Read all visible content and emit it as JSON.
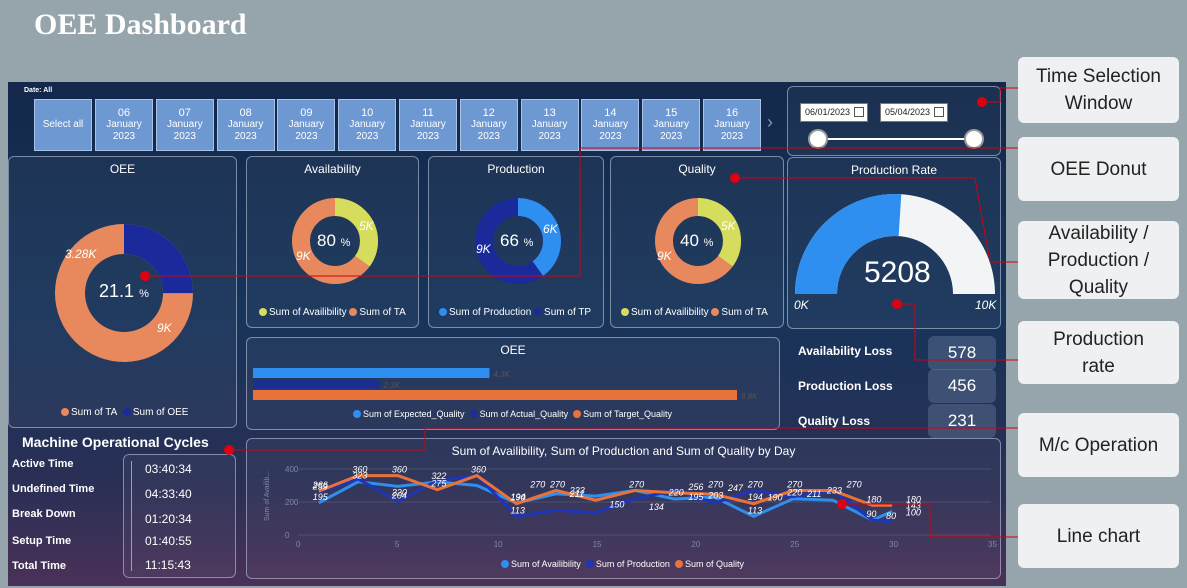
{
  "title": "OEE Dashboard",
  "date_slicer": {
    "label": "Date: All",
    "select_all": "Select all",
    "tiles": [
      {
        "day": "06",
        "month": "January",
        "year": "2023"
      },
      {
        "day": "07",
        "month": "January",
        "year": "2023"
      },
      {
        "day": "08",
        "month": "January",
        "year": "2023"
      },
      {
        "day": "09",
        "month": "January",
        "year": "2023"
      },
      {
        "day": "10",
        "month": "January",
        "year": "2023"
      },
      {
        "day": "11",
        "month": "January",
        "year": "2023"
      },
      {
        "day": "12",
        "month": "January",
        "year": "2023"
      },
      {
        "day": "13",
        "month": "January",
        "year": "2023"
      },
      {
        "day": "14",
        "month": "January",
        "year": "2023"
      },
      {
        "day": "15",
        "month": "January",
        "year": "2023"
      },
      {
        "day": "16",
        "month": "January",
        "year": "2023"
      }
    ],
    "next_arrow": "›"
  },
  "range": {
    "start": "06/01/2023",
    "end": "05/04/2023",
    "slider_start": 0,
    "slider_end": 1
  },
  "oee_donut": {
    "title": "OEE",
    "center_value": "21.1",
    "center_unit": "%",
    "label_oee": "3.28K",
    "label_ta": "9K",
    "legend": [
      "Sum of TA",
      "Sum of OEE"
    ],
    "oee_fraction": 0.25
  },
  "availability": {
    "title": "Availability",
    "center_value": "80",
    "center_unit": "%",
    "label_a": "5K",
    "label_b": "9K",
    "legend": [
      "Sum of Availibility",
      "Sum of TA"
    ],
    "fraction": 0.35
  },
  "production": {
    "title": "Production",
    "center_value": "66",
    "center_unit": "%",
    "label_a": "6K",
    "label_b": "9K",
    "legend": [
      "Sum of Production",
      "Sum of TP"
    ],
    "fraction": 0.4
  },
  "quality": {
    "title": "Quality",
    "center_value": "40",
    "center_unit": "%",
    "label_a": "5K",
    "label_b": "9K",
    "legend": [
      "Sum of Availibility",
      "Sum of TA"
    ],
    "fraction": 0.35
  },
  "production_rate": {
    "title": "Production Rate",
    "value": "5208",
    "min": "0K",
    "max": "10K",
    "fraction": 0.52
  },
  "oee_bar": {
    "title": "OEE",
    "bars": [
      {
        "name": "Sum of Expected_Quality",
        "value": 4300,
        "label": "4.3K",
        "color": "#2e8ff0"
      },
      {
        "name": "Sum of Actual_Quality",
        "value": 2300,
        "label": "2.3K",
        "color": "#1a2f8f"
      },
      {
        "name": "Sum of Target_Quality",
        "value": 8800,
        "label": "8.8K",
        "color": "#e8733a"
      }
    ],
    "max": 8800
  },
  "losses": [
    {
      "label": "Availability Loss",
      "value": "578"
    },
    {
      "label": "Production Loss",
      "value": "456"
    },
    {
      "label": "Quality Loss",
      "value": "231"
    }
  ],
  "machine_cycles": {
    "title": "Machine Operational Cycles",
    "rows": [
      {
        "label": "Active Time",
        "value": "03:40:34"
      },
      {
        "label": "Undefined Time",
        "value": "04:33:40"
      },
      {
        "label": "Break Down",
        "value": "01:20:34"
      },
      {
        "label": "Setup Time",
        "value": "01:40:55"
      },
      {
        "label": "Total Time",
        "value": "11:15:43"
      }
    ]
  },
  "chart_data": {
    "type": "line",
    "title": "Sum of Availibility, Sum of Production and Sum of Quality by Day",
    "ylabel": "Sum of Availib...",
    "xlim": [
      0,
      35
    ],
    "ylim": [
      0,
      400
    ],
    "xticks": [
      0,
      5,
      10,
      15,
      20,
      25,
      30,
      35
    ],
    "yticks": [
      0,
      200,
      400
    ],
    "series": [
      {
        "name": "Sum of Availibility",
        "color": "#2e8ff0",
        "points": [
          [
            1,
            195
          ],
          [
            3,
            323
          ],
          [
            5,
            295
          ],
          [
            7,
            322
          ],
          [
            9,
            300
          ],
          [
            11,
            194
          ],
          [
            13,
            250
          ],
          [
            15,
            236
          ],
          [
            17,
            270
          ],
          [
            19,
            218
          ],
          [
            21,
            230
          ],
          [
            23,
            113
          ],
          [
            25,
            220
          ],
          [
            27,
            211
          ],
          [
            29,
            90
          ],
          [
            30,
            143
          ]
        ]
      },
      {
        "name": "Sum of Production",
        "color": "#1f35b8",
        "points": [
          [
            1,
            259
          ],
          [
            3,
            340
          ],
          [
            5,
            204
          ],
          [
            7,
            330
          ],
          [
            9,
            360
          ],
          [
            11,
            113
          ],
          [
            13,
            150
          ],
          [
            15,
            134
          ],
          [
            17,
            220
          ],
          [
            19,
            270
          ],
          [
            21,
            194
          ],
          [
            23,
            270
          ],
          [
            25,
            233
          ],
          [
            27,
            270
          ],
          [
            29,
            90
          ],
          [
            30,
            80
          ]
        ]
      },
      {
        "name": "Sum of Quality",
        "color": "#e8733a",
        "points": [
          [
            1,
            266
          ],
          [
            3,
            360
          ],
          [
            5,
            360
          ],
          [
            7,
            275
          ],
          [
            9,
            360
          ],
          [
            11,
            190
          ],
          [
            13,
            270
          ],
          [
            15,
            211
          ],
          [
            17,
            270
          ],
          [
            19,
            256
          ],
          [
            21,
            247
          ],
          [
            23,
            190
          ],
          [
            25,
            270
          ],
          [
            27,
            270
          ],
          [
            29,
            180
          ],
          [
            30,
            180
          ]
        ]
      }
    ],
    "data_labels": [
      {
        "x": 1,
        "y": 266,
        "t": "266"
      },
      {
        "x": 1,
        "y": 259,
        "t": "259"
      },
      {
        "x": 1,
        "y": 195,
        "t": "195"
      },
      {
        "x": 3,
        "y": 360,
        "t": "360"
      },
      {
        "x": 3,
        "y": 323,
        "t": "323"
      },
      {
        "x": 5,
        "y": 220,
        "t": "220"
      },
      {
        "x": 5,
        "y": 360,
        "t": "360"
      },
      {
        "x": 5,
        "y": 204,
        "t": "204"
      },
      {
        "x": 7,
        "y": 275,
        "t": "275"
      },
      {
        "x": 7,
        "y": 322,
        "t": "322"
      },
      {
        "x": 9,
        "y": 360,
        "t": "360"
      },
      {
        "x": 11,
        "y": 194,
        "t": "194"
      },
      {
        "x": 11,
        "y": 113,
        "t": "113"
      },
      {
        "x": 11,
        "y": 190,
        "t": "190"
      },
      {
        "x": 12,
        "y": 270,
        "t": "270"
      },
      {
        "x": 13,
        "y": 270,
        "t": "270"
      },
      {
        "x": 14,
        "y": 211,
        "t": "211"
      },
      {
        "x": 14,
        "y": 233,
        "t": "233"
      },
      {
        "x": 16,
        "y": 150,
        "t": "150"
      },
      {
        "x": 17,
        "y": 270,
        "t": "270"
      },
      {
        "x": 18,
        "y": 134,
        "t": "134"
      },
      {
        "x": 19,
        "y": 220,
        "t": "220"
      },
      {
        "x": 20,
        "y": 256,
        "t": "256"
      },
      {
        "x": 20,
        "y": 195,
        "t": "195"
      },
      {
        "x": 21,
        "y": 270,
        "t": "270"
      },
      {
        "x": 21,
        "y": 203,
        "t": "203"
      },
      {
        "x": 22,
        "y": 247,
        "t": "247"
      },
      {
        "x": 23,
        "y": 270,
        "t": "270"
      },
      {
        "x": 23,
        "y": 194,
        "t": "194"
      },
      {
        "x": 23,
        "y": 113,
        "t": "113"
      },
      {
        "x": 24,
        "y": 190,
        "t": "190"
      },
      {
        "x": 25,
        "y": 270,
        "t": "270"
      },
      {
        "x": 25,
        "y": 220,
        "t": "220"
      },
      {
        "x": 26,
        "y": 211,
        "t": "211"
      },
      {
        "x": 27,
        "y": 233,
        "t": "233"
      },
      {
        "x": 28,
        "y": 270,
        "t": "270"
      },
      {
        "x": 29,
        "y": 180,
        "t": "180"
      },
      {
        "x": 29,
        "y": 90,
        "t": "90"
      },
      {
        "x": 30,
        "y": 80,
        "t": "80"
      },
      {
        "x": 31,
        "y": 180,
        "t": "180"
      },
      {
        "x": 31,
        "y": 100,
        "t": "100"
      },
      {
        "x": 31,
        "y": 143,
        "t": "143"
      }
    ]
  },
  "callouts": [
    {
      "text": "Time Selection Window"
    },
    {
      "text": "OEE Donut"
    },
    {
      "text": "Availability / Production / Quality"
    },
    {
      "text": "Production rate"
    },
    {
      "text": "M/c Operation"
    },
    {
      "text": "Line chart"
    }
  ],
  "colors": {
    "orange": "#e8895d",
    "navy": "#1a2a9a",
    "blue": "#2e8ff0",
    "yellow": "#d6dc5c",
    "red": "#e0000f"
  }
}
